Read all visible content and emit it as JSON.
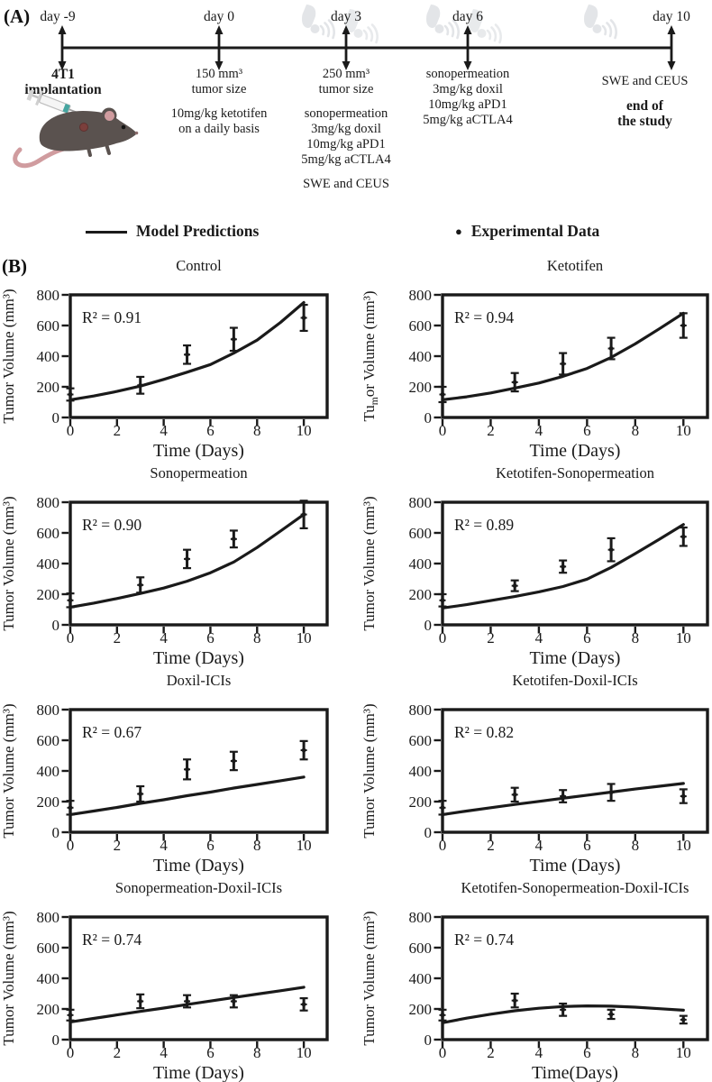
{
  "panel_a": {
    "label": "(A)",
    "events": [
      {
        "day": "day -9",
        "lines": [
          "4T1",
          "implantation"
        ]
      },
      {
        "day": "day 0",
        "lines": [
          "150 mm³",
          "tumor size",
          "10mg/kg ketotifen",
          "on a daily basis"
        ]
      },
      {
        "day": "day 3",
        "lines": [
          "250 mm³",
          "tumor size",
          "sonopermeation",
          "3mg/kg doxil",
          "10mg/kg aPD1",
          "5mg/kg aCTLA4",
          "SWE and CEUS"
        ]
      },
      {
        "day": "day 6",
        "lines": [
          "sonopermeation",
          "3mg/kg doxil",
          "10mg/kg aPD1",
          "5mg/kg aCTLA4"
        ]
      },
      {
        "day": "day 10",
        "lines": [
          "SWE and CEUS",
          "end of",
          "the study"
        ]
      }
    ]
  },
  "legend": {
    "model_label": "Model Predictions",
    "data_label": "Experimental Data"
  },
  "panel_b_label": "(B)",
  "colors": {
    "ink": "#1a1a1a",
    "accent_teal": "#46a5a0",
    "mouse_body": "#5a524f",
    "mouse_pink": "#d09c9f",
    "watermark": "#e3e5e8"
  },
  "chart_data": [
    {
      "type": "line",
      "title": "Control",
      "r_squared": "0.91",
      "xlabel": "Time (Days)",
      "ylabel_parts": [
        {
          "t": "Tumor Volume (mm³)"
        }
      ],
      "xlim": [
        0,
        11
      ],
      "ylim": [
        0,
        800
      ],
      "xticks": [
        0,
        2,
        4,
        6,
        8,
        10
      ],
      "yticks": [
        0,
        200,
        400,
        600,
        800
      ],
      "experimental": {
        "x": [
          0,
          3,
          5,
          7,
          10
        ],
        "y": [
          150,
          210,
          410,
          510,
          650
        ],
        "err": [
          40,
          55,
          60,
          75,
          85
        ]
      },
      "model": {
        "x": [
          0,
          1,
          2,
          3,
          4,
          5,
          6,
          7,
          8,
          9,
          10
        ],
        "y": [
          115,
          140,
          170,
          205,
          248,
          295,
          345,
          420,
          505,
          620,
          750
        ]
      }
    },
    {
      "type": "line",
      "title": "Ketotifen",
      "r_squared": "0.94",
      "xlabel": "Time (Days)",
      "ylabel_parts": [
        {
          "t": "Tu"
        },
        {
          "t": "m",
          "sub": true
        },
        {
          "t": "or Volume (mm³)"
        }
      ],
      "xlim": [
        0,
        11
      ],
      "ylim": [
        0,
        800
      ],
      "xticks": [
        0,
        2,
        4,
        6,
        8,
        10
      ],
      "yticks": [
        0,
        200,
        400,
        600,
        800
      ],
      "experimental": {
        "x": [
          0,
          3,
          5,
          7,
          10
        ],
        "y": [
          150,
          230,
          350,
          450,
          600
        ],
        "err": [
          50,
          60,
          70,
          70,
          80
        ]
      },
      "model": {
        "x": [
          0,
          1,
          2,
          3,
          4,
          5,
          6,
          7,
          8,
          9,
          10
        ],
        "y": [
          115,
          135,
          160,
          192,
          225,
          268,
          320,
          392,
          480,
          578,
          680
        ]
      }
    },
    {
      "type": "line",
      "title": "Sonopermeation",
      "r_squared": "0.90",
      "xlabel": "Time (Days)",
      "ylabel_parts": [
        {
          "t": "Tumor Volume (mm³)"
        }
      ],
      "xlim": [
        0,
        11
      ],
      "ylim": [
        0,
        800
      ],
      "xticks": [
        0,
        2,
        4,
        6,
        8,
        10
      ],
      "yticks": [
        0,
        200,
        400,
        600,
        800
      ],
      "experimental": {
        "x": [
          0,
          3,
          5,
          7,
          10
        ],
        "y": [
          160,
          260,
          430,
          560,
          720
        ],
        "err": [
          45,
          50,
          60,
          55,
          90
        ]
      },
      "model": {
        "x": [
          0,
          1,
          2,
          3,
          4,
          5,
          6,
          7,
          8,
          9,
          10
        ],
        "y": [
          115,
          142,
          172,
          205,
          240,
          285,
          340,
          410,
          505,
          612,
          720
        ]
      }
    },
    {
      "type": "line",
      "title": "Ketotifen-Sonopermeation",
      "r_squared": "0.89",
      "xlabel": "Time (Days)",
      "ylabel_parts": [
        {
          "t": "Tumor Volume (mm³)"
        }
      ],
      "xlim": [
        0,
        11
      ],
      "ylim": [
        0,
        800
      ],
      "xticks": [
        0,
        2,
        4,
        6,
        8,
        10
      ],
      "yticks": [
        0,
        200,
        400,
        600,
        800
      ],
      "experimental": {
        "x": [
          0,
          3,
          5,
          7,
          10
        ],
        "y": [
          160,
          255,
          380,
          490,
          575
        ],
        "err": [
          40,
          35,
          40,
          75,
          60
        ]
      },
      "model": {
        "x": [
          0,
          1,
          2,
          3,
          4,
          5,
          6,
          7,
          8,
          9,
          10
        ],
        "y": [
          110,
          132,
          158,
          185,
          215,
          250,
          298,
          375,
          465,
          558,
          655
        ]
      }
    },
    {
      "type": "line",
      "title": "Doxil-ICIs",
      "r_squared": "0.67",
      "xlabel": "Time (Days)",
      "ylabel_parts": [
        {
          "t": "Tumor Volume (mm³)"
        }
      ],
      "xlim": [
        0,
        11
      ],
      "ylim": [
        0,
        800
      ],
      "xticks": [
        0,
        2,
        4,
        6,
        8,
        10
      ],
      "yticks": [
        0,
        200,
        400,
        600,
        800
      ],
      "experimental": {
        "x": [
          0,
          3,
          5,
          7,
          10
        ],
        "y": [
          160,
          250,
          410,
          465,
          535
        ],
        "err": [
          45,
          50,
          65,
          60,
          60
        ]
      },
      "model": {
        "x": [
          0,
          1,
          2,
          3,
          4,
          5,
          6,
          7,
          8,
          9,
          10
        ],
        "y": [
          115,
          138,
          162,
          188,
          212,
          238,
          262,
          288,
          312,
          336,
          360
        ]
      }
    },
    {
      "type": "line",
      "title": "Ketotifen-Doxil-ICIs",
      "r_squared": "0.82",
      "xlabel": "Time (Days)",
      "ylabel_parts": [
        {
          "t": "Tumor Volume (mm³)"
        }
      ],
      "xlim": [
        0,
        11
      ],
      "ylim": [
        0,
        800
      ],
      "xticks": [
        0,
        2,
        4,
        6,
        8,
        10
      ],
      "yticks": [
        0,
        200,
        400,
        600,
        800
      ],
      "experimental": {
        "x": [
          0,
          3,
          5,
          7,
          10
        ],
        "y": [
          160,
          245,
          235,
          260,
          235
        ],
        "err": [
          45,
          45,
          40,
          55,
          45
        ]
      },
      "model": {
        "x": [
          0,
          1,
          2,
          3,
          4,
          5,
          6,
          7,
          8,
          9,
          10
        ],
        "y": [
          115,
          138,
          160,
          181,
          201,
          222,
          242,
          262,
          282,
          300,
          318
        ]
      }
    },
    {
      "type": "line",
      "title": "Sonopermeation-Doxil-ICIs",
      "r_squared": "0.74",
      "xlabel": "Time (Days)",
      "ylabel_parts": [
        {
          "t": "Tumor Volume (mm³)"
        }
      ],
      "xlim": [
        0,
        11
      ],
      "ylim": [
        0,
        800
      ],
      "xticks": [
        0,
        2,
        4,
        6,
        8,
        10
      ],
      "yticks": [
        0,
        200,
        400,
        600,
        800
      ],
      "experimental": {
        "x": [
          0,
          3,
          5,
          7,
          10
        ],
        "y": [
          160,
          250,
          250,
          250,
          230
        ],
        "err": [
          35,
          45,
          40,
          40,
          40
        ]
      },
      "model": {
        "x": [
          0,
          1,
          2,
          3,
          4,
          5,
          6,
          7,
          8,
          9,
          10
        ],
        "y": [
          115,
          138,
          161,
          184,
          206,
          229,
          252,
          275,
          297,
          319,
          342
        ]
      }
    },
    {
      "type": "line",
      "title": "Ketotifen-Sonopermeation-Doxil-ICIs",
      "r_squared": "0.74",
      "xlabel": "Time(Days)",
      "ylabel_parts": [
        {
          "t": "Tumor Volume (mm³)"
        }
      ],
      "xlim": [
        0,
        11
      ],
      "ylim": [
        0,
        800
      ],
      "xticks": [
        0,
        2,
        4,
        6,
        8,
        10
      ],
      "yticks": [
        0,
        200,
        400,
        600,
        800
      ],
      "experimental": {
        "x": [
          0,
          3,
          5,
          7,
          10
        ],
        "y": [
          160,
          255,
          195,
          165,
          130
        ],
        "err": [
          35,
          45,
          40,
          30,
          25
        ]
      },
      "model": {
        "x": [
          0,
          1,
          2,
          3,
          4,
          5,
          6,
          7,
          8,
          9,
          10
        ],
        "y": [
          110,
          140,
          166,
          188,
          205,
          216,
          220,
          218,
          212,
          202,
          192
        ]
      }
    }
  ]
}
